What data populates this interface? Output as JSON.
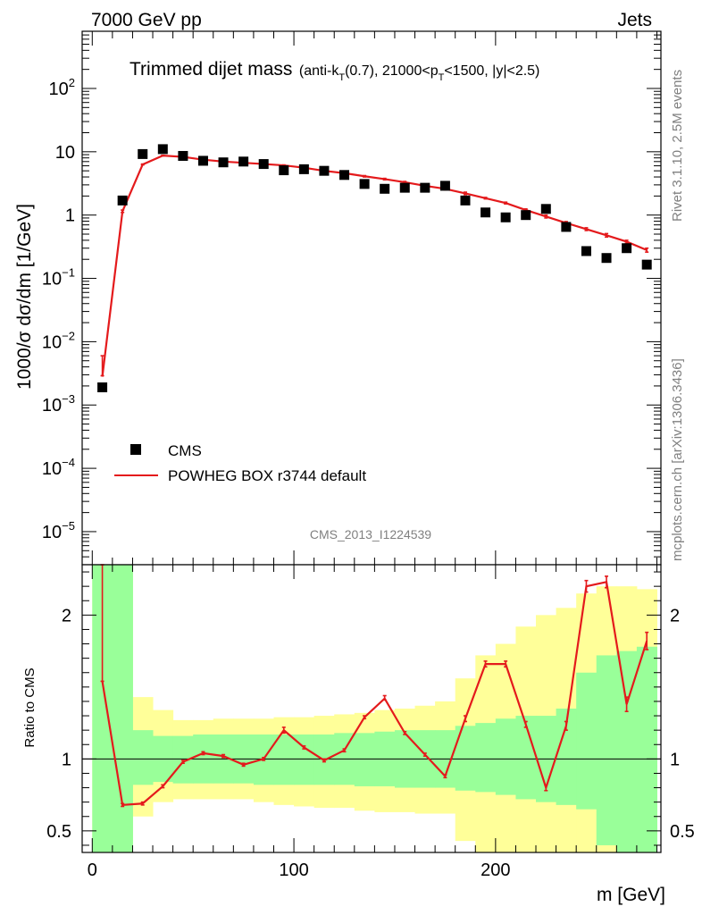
{
  "header": {
    "left": "7000 GeV pp",
    "right": "Jets"
  },
  "side_labels": {
    "rivet": "Rivet 3.1.10,  2.5M events",
    "mcplots": "mcplots.cern.ch [arXiv:1306.3436]"
  },
  "chart_data": [
    {
      "type": "scatter",
      "title": "Trimmed dijet mass",
      "subtitle_parts": {
        "a": "(anti-k",
        "a_sub": "T",
        "b": "(0.7), 21000<p",
        "b_sub": "T",
        "c": "<1500, |y|<2.5)"
      },
      "ylabel": "1000/σ dσ/dm [1/GeV]",
      "yscale": "log",
      "ylim": [
        3e-06,
        800
      ],
      "xlim": [
        -5,
        282
      ],
      "analysis_id": "CMS_2013_I1224539",
      "y_ticks": [
        {
          "v": 100,
          "base": "10",
          "exp": "2"
        },
        {
          "v": 10,
          "base": "10",
          "exp": ""
        },
        {
          "v": 1,
          "base": "1",
          "exp": ""
        },
        {
          "v": 0.1,
          "base": "10",
          "exp": "−1"
        },
        {
          "v": 0.01,
          "base": "10",
          "exp": "−2"
        },
        {
          "v": 0.001,
          "base": "10",
          "exp": "−3"
        },
        {
          "v": 0.0001,
          "base": "10",
          "exp": "−4"
        },
        {
          "v": 1e-05,
          "base": "10",
          "exp": "−5"
        }
      ],
      "legend": {
        "placement": "bottom-left",
        "entries": [
          "CMS",
          "POWHEG BOX r3744 default"
        ]
      },
      "series": [
        {
          "name": "CMS",
          "style": "markers",
          "color": "#000000",
          "x": [
            5,
            15,
            25,
            35,
            45,
            55,
            65,
            75,
            85,
            95,
            105,
            115,
            125,
            135,
            145,
            155,
            165,
            175,
            185,
            195,
            205,
            215,
            225,
            235,
            245,
            255,
            265,
            275
          ],
          "y": [
            0.0019,
            1.7,
            9.2,
            11.0,
            8.6,
            7.2,
            6.8,
            7.0,
            6.4,
            5.1,
            5.3,
            5.0,
            4.3,
            3.1,
            2.6,
            2.7,
            2.7,
            2.9,
            1.7,
            1.1,
            0.92,
            1.0,
            1.25,
            0.65,
            0.27,
            0.21,
            0.3,
            0.165
          ]
        },
        {
          "name": "POWHEG BOX r3744 default",
          "style": "line",
          "color": "#e41a1c",
          "x": [
            5,
            15,
            25,
            35,
            45,
            55,
            65,
            75,
            85,
            95,
            105,
            115,
            125,
            135,
            145,
            155,
            165,
            175,
            185,
            195,
            205,
            215,
            225,
            235,
            245,
            255,
            265,
            275
          ],
          "y": [
            0.0028,
            1.15,
            6.3,
            8.7,
            8.3,
            7.5,
            7.0,
            6.7,
            6.4,
            6.1,
            5.6,
            5.0,
            4.6,
            4.1,
            3.7,
            3.3,
            2.9,
            2.6,
            2.2,
            1.85,
            1.55,
            1.2,
            0.95,
            0.75,
            0.6,
            0.48,
            0.38,
            0.28
          ],
          "yerr_lo": [
            0.0029,
            1.1,
            6.2,
            8.6,
            8.2,
            7.4,
            6.9,
            6.6,
            6.3,
            6.0,
            5.5,
            4.9,
            4.5,
            4.0,
            3.6,
            3.2,
            2.8,
            2.5,
            2.1,
            1.8,
            1.5,
            1.15,
            0.9,
            0.71,
            0.57,
            0.45,
            0.36,
            0.26
          ],
          "yerr_hi": [
            0.006,
            1.2,
            6.4,
            8.8,
            8.4,
            7.6,
            7.1,
            6.8,
            6.5,
            6.2,
            5.7,
            5.1,
            4.7,
            4.2,
            3.8,
            3.4,
            3.0,
            2.7,
            2.3,
            1.9,
            1.6,
            1.25,
            1.0,
            0.79,
            0.63,
            0.51,
            0.4,
            0.3
          ]
        }
      ]
    },
    {
      "type": "line",
      "ylabel": "Ratio to CMS",
      "xlabel": "m [GeV]",
      "xlim": [
        -5,
        282
      ],
      "ylim": [
        0.35,
        2.35
      ],
      "y_ticks": [
        {
          "v": 0.5,
          "label": "0.5"
        },
        {
          "v": 1,
          "label": "1"
        },
        {
          "v": 2,
          "label": "2"
        }
      ],
      "x_ticks": [
        {
          "v": 0,
          "label": "0"
        },
        {
          "v": 100,
          "label": "100"
        },
        {
          "v": 200,
          "label": "200"
        }
      ],
      "bins": [
        0,
        10,
        20,
        30,
        40,
        50,
        60,
        70,
        80,
        90,
        100,
        110,
        120,
        130,
        140,
        150,
        160,
        170,
        180,
        190,
        200,
        210,
        220,
        230,
        240,
        250,
        260,
        270,
        280
      ],
      "band_green": {
        "lo": [
          0.0,
          0.0,
          0.82,
          0.84,
          0.83,
          0.83,
          0.83,
          0.83,
          0.82,
          0.82,
          0.82,
          0.82,
          0.82,
          0.81,
          0.81,
          0.8,
          0.8,
          0.8,
          0.78,
          0.77,
          0.75,
          0.72,
          0.7,
          0.68,
          0.65,
          0.4,
          0.3,
          0.28
        ],
        "hi": [
          2.6,
          2.6,
          1.2,
          1.16,
          1.16,
          1.17,
          1.17,
          1.17,
          1.17,
          1.17,
          1.17,
          1.17,
          1.18,
          1.18,
          1.19,
          1.2,
          1.2,
          1.2,
          1.23,
          1.25,
          1.28,
          1.3,
          1.3,
          1.35,
          1.6,
          1.72,
          1.75,
          1.78
        ]
      },
      "band_yellow": {
        "lo": [
          0.0,
          0.0,
          0.6,
          0.7,
          0.72,
          0.72,
          0.72,
          0.72,
          0.7,
          0.68,
          0.67,
          0.66,
          0.66,
          0.64,
          0.63,
          0.63,
          0.62,
          0.62,
          0.43,
          0.3,
          0.0,
          0.0,
          0.0,
          0.0,
          0.0,
          0.0,
          0.0,
          0.0
        ],
        "hi": [
          2.6,
          2.6,
          1.43,
          1.34,
          1.27,
          1.27,
          1.28,
          1.28,
          1.28,
          1.29,
          1.29,
          1.3,
          1.31,
          1.32,
          1.34,
          1.35,
          1.37,
          1.4,
          1.56,
          1.72,
          1.8,
          1.92,
          2.0,
          2.05,
          2.15,
          2.2,
          2.2,
          2.18
        ]
      },
      "series": [
        {
          "name": "POWHEG BOX r3744 default",
          "color": "#e41a1c",
          "x": [
            5,
            15,
            25,
            35,
            45,
            55,
            65,
            75,
            85,
            95,
            105,
            115,
            125,
            135,
            145,
            155,
            165,
            175,
            185,
            195,
            205,
            215,
            225,
            235,
            245,
            255,
            265,
            275
          ],
          "y": [
            1.54,
            0.68,
            0.69,
            0.81,
            0.98,
            1.04,
            1.02,
            0.96,
            1.0,
            1.2,
            1.08,
            0.99,
            1.06,
            1.29,
            1.42,
            1.18,
            1.03,
            0.88,
            1.28,
            1.66,
            1.66,
            1.24,
            0.8,
            1.23,
            2.2,
            2.23,
            1.38,
            1.82
          ],
          "yerr_lo": [
            1.54,
            0.67,
            0.68,
            0.8,
            0.97,
            1.03,
            1.01,
            0.95,
            0.99,
            1.18,
            1.07,
            0.98,
            1.05,
            1.28,
            1.41,
            1.17,
            1.02,
            0.87,
            1.26,
            1.64,
            1.64,
            1.22,
            0.78,
            1.2,
            2.16,
            2.19,
            1.33,
            1.76
          ],
          "yerr_hi": [
            2.6,
            0.69,
            0.7,
            0.82,
            0.99,
            1.05,
            1.03,
            0.97,
            1.01,
            1.22,
            1.09,
            1.0,
            1.07,
            1.3,
            1.44,
            1.19,
            1.04,
            0.89,
            1.3,
            1.68,
            1.68,
            1.26,
            0.82,
            1.26,
            2.24,
            2.27,
            1.43,
            1.88
          ]
        }
      ]
    }
  ]
}
